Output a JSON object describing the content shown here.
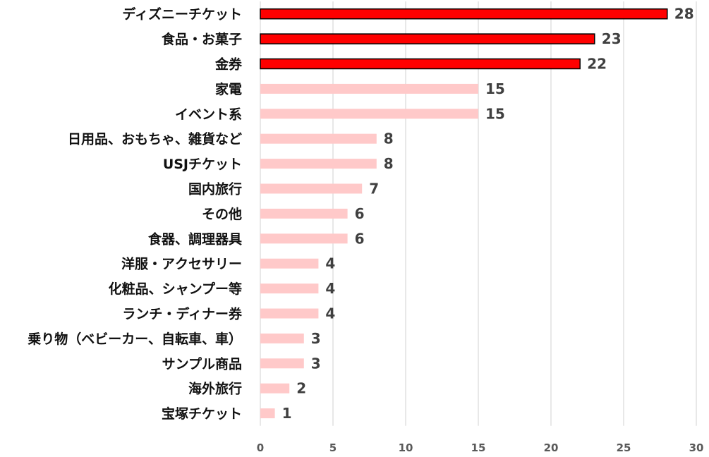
{
  "chart_data": {
    "type": "bar",
    "orientation": "horizontal",
    "categories": [
      "ディズニーチケット",
      "食品・お菓子",
      "金券",
      "家電",
      "イベント系",
      "日用品、おもちゃ、雑貨など",
      "USJチケット",
      "国内旅行",
      "その他",
      "食器、調理器具",
      "洋服・アクセサリー",
      "化粧品、シャンプー等",
      "ランチ・ディナー券",
      "乗り物（ベビーカー、自転車、車）",
      "サンプル商品",
      "海外旅行",
      "宝塚チケット"
    ],
    "values": [
      28,
      23,
      22,
      15,
      15,
      8,
      8,
      7,
      6,
      6,
      4,
      4,
      4,
      3,
      3,
      2,
      1
    ],
    "highlighted": [
      true,
      true,
      true,
      false,
      false,
      false,
      false,
      false,
      false,
      false,
      false,
      false,
      false,
      false,
      false,
      false,
      false
    ],
    "xlim": [
      0,
      30
    ],
    "xticks": [
      0,
      5,
      10,
      15,
      20,
      25,
      30
    ],
    "grid": "vertical",
    "legend": "none",
    "title": "",
    "xlabel": "",
    "ylabel": "",
    "colors": {
      "highlight_fill": "#ff0000",
      "highlight_stroke": "#000000",
      "normal_fill": "#ffc9c9",
      "grid": "#d9d9d9",
      "category_text": "#111111",
      "value_text": "#404040",
      "tick_text": "#595959"
    }
  }
}
